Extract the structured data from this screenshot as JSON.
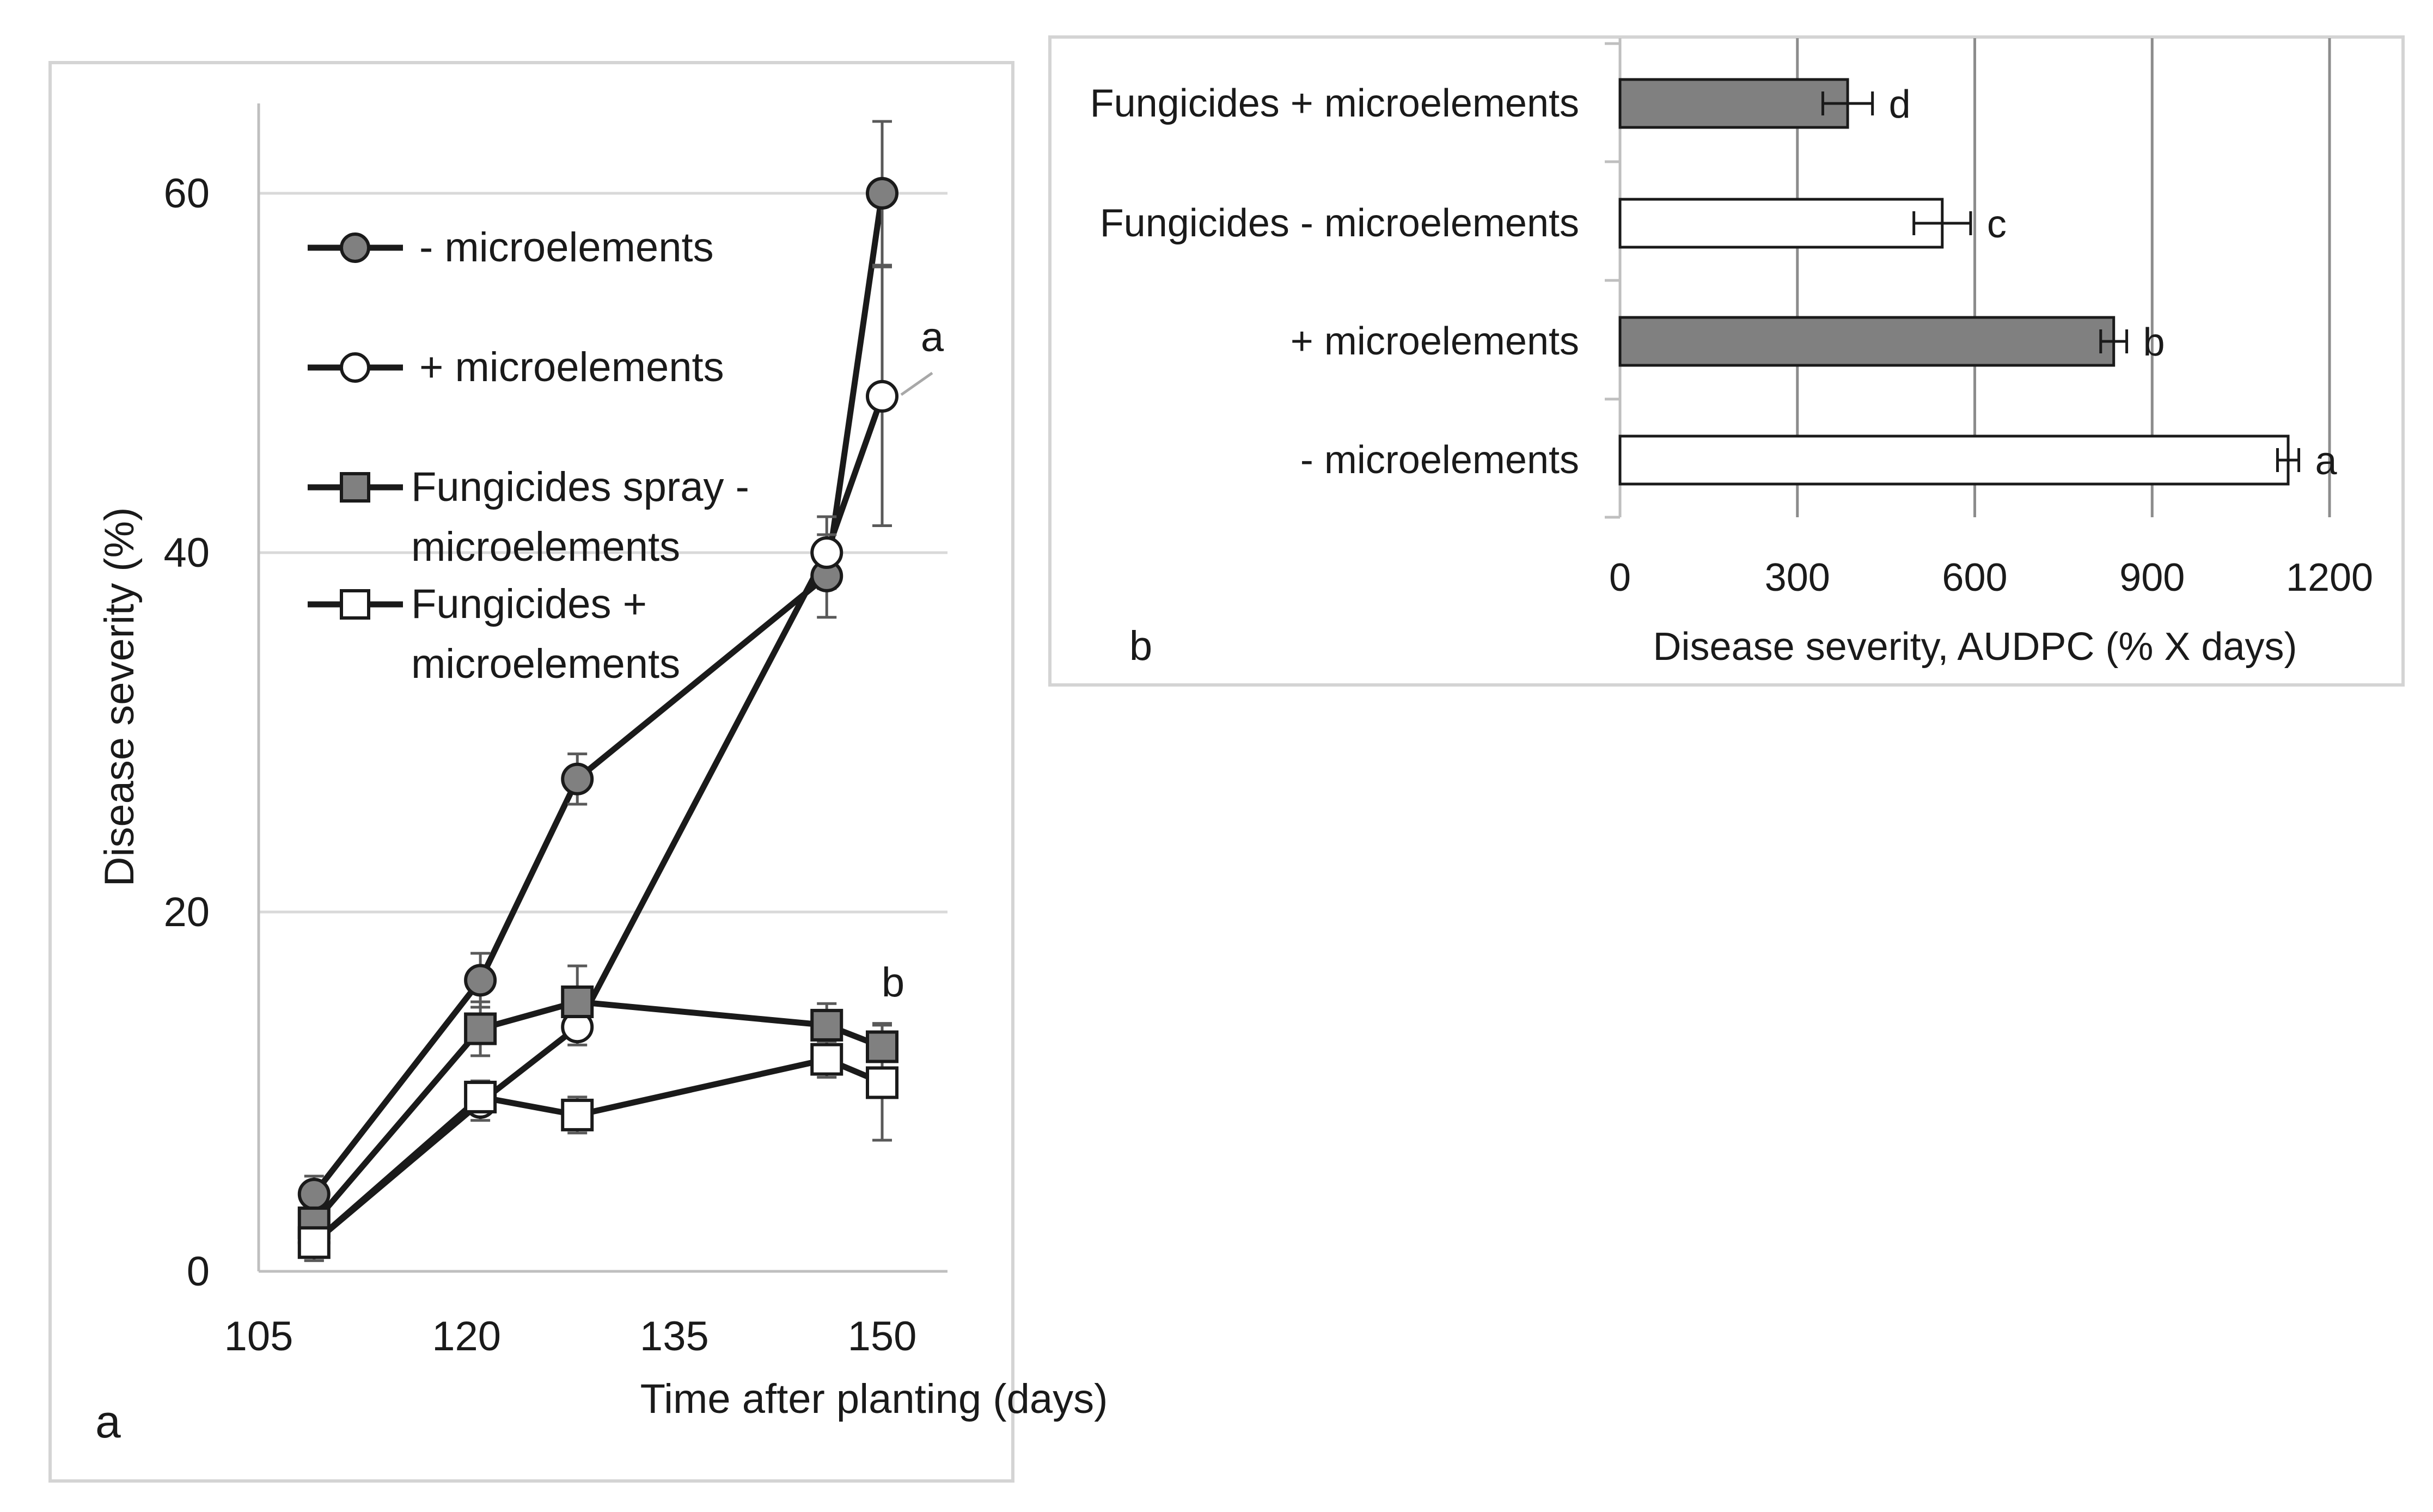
{
  "chart_data": [
    {
      "type": "line",
      "panel_label": "a",
      "xlabel": "Time after planting (days)",
      "ylabel": "Disease severity (%)",
      "xlim": [
        105,
        152
      ],
      "ylim": [
        0,
        65
      ],
      "xticks": [
        "105",
        "120",
        "135",
        "150"
      ],
      "yticks": [
        "0",
        "20",
        "40",
        "60"
      ],
      "grid": "horizontal",
      "legend_placement": "top-left",
      "series": [
        {
          "name": "- microelements",
          "marker": "circle",
          "fill": "#808080",
          "x": [
            109,
            121,
            128,
            146,
            150
          ],
          "y": [
            4.3,
            16.2,
            27.4,
            38.7,
            60.0
          ],
          "err": [
            1.0,
            1.5,
            1.4,
            2.3,
            4.0
          ]
        },
        {
          "name": "+ microelements",
          "marker": "circle",
          "fill": "#ffffff",
          "x": [
            109,
            121,
            128,
            146,
            150
          ],
          "y": [
            1.6,
            9.4,
            13.6,
            40.0,
            48.7
          ],
          "err": [
            1.0,
            1.0,
            1.0,
            2.0,
            7.2
          ]
        },
        {
          "name": "Fungicides spray - microelements",
          "marker": "square",
          "fill": "#808080",
          "x": [
            109,
            121,
            128,
            146,
            150
          ],
          "y": [
            2.7,
            13.5,
            15.0,
            13.7,
            12.5
          ],
          "err": [
            1.0,
            1.5,
            2.0,
            1.2,
            1.3
          ]
        },
        {
          "name": "Fungicides + microelements",
          "marker": "square",
          "fill": "#ffffff",
          "x": [
            109,
            121,
            128,
            146,
            150
          ],
          "y": [
            1.6,
            9.7,
            8.7,
            11.8,
            10.5
          ],
          "err": [
            1.0,
            0.9,
            1.0,
            1.0,
            3.2
          ]
        }
      ],
      "annotations": [
        "a",
        "b"
      ]
    },
    {
      "type": "bar",
      "orientation": "horizontal",
      "panel_label": "b",
      "xlabel": "Disease severity, AUDPC (% X days)",
      "xlim": [
        0,
        1200
      ],
      "xticks": [
        "0",
        "300",
        "600",
        "900",
        "1200"
      ],
      "grid": "vertical",
      "categories": [
        "Fungicides + microelements",
        "Fungicides - microelements",
        "+ microelements",
        "- microelements"
      ],
      "values": [
        385,
        545,
        835,
        1130
      ],
      "err": [
        42,
        48,
        22,
        18
      ],
      "fills": [
        "#808080",
        "#ffffff",
        "#808080",
        "#ffffff"
      ],
      "letters": [
        "d",
        "c",
        "b",
        "a"
      ]
    }
  ]
}
